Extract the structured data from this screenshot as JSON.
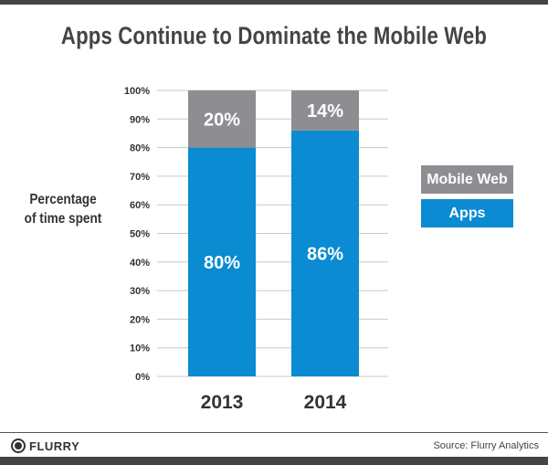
{
  "chart_data": {
    "type": "bar",
    "stacked": true,
    "title": "Apps Continue to Dominate the Mobile Web",
    "ylabel": "Percentage of time spent",
    "ylabel_lines": [
      "Percentage",
      "of time spent"
    ],
    "categories": [
      "2013",
      "2014"
    ],
    "series": [
      {
        "name": "Apps",
        "values": [
          80,
          86
        ],
        "color": "#0a8bd2",
        "labels": [
          "80%",
          "86%"
        ]
      },
      {
        "name": "Mobile Web",
        "values": [
          20,
          14
        ],
        "color": "#8e8e92",
        "labels": [
          "20%",
          "14%"
        ]
      }
    ],
    "ylim": [
      0,
      100
    ],
    "yticks": [
      "0%",
      "10%",
      "20%",
      "30%",
      "40%",
      "50%",
      "60%",
      "70%",
      "80%",
      "90%",
      "100%"
    ],
    "grid": true,
    "legend_position": "right"
  },
  "footer": {
    "logo": "FLURRY",
    "source": "Source: Flurry Analytics"
  }
}
